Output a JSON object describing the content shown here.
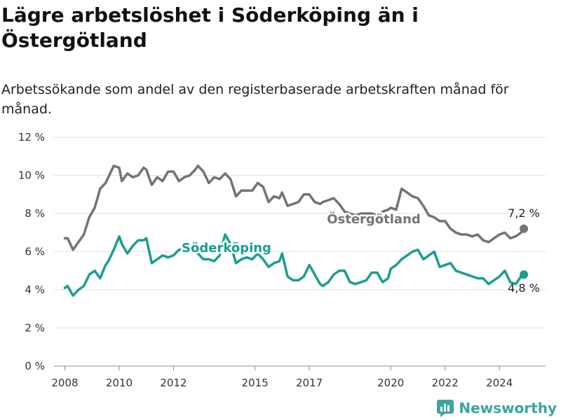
{
  "header": {
    "title": "Lägre arbetslöshet i Söderköping än i Östergötland",
    "subtitle": "Arbetssökande som andel av den registerbaserade arbetskraften månad för månad."
  },
  "brand": {
    "name": "Newsworthy",
    "icon": "newsworthy-logo-icon",
    "color": "#3aa6a0"
  },
  "chart_data": {
    "type": "line",
    "title": "Lägre arbetslöshet i Söderköping än i Östergötland",
    "subtitle": "Arbetssökande som andel av den registerbaserade arbetskraften månad för månad.",
    "ylim": [
      0,
      12
    ],
    "yticks": [
      0,
      2,
      4,
      6,
      8,
      10,
      12
    ],
    "ytick_labels": [
      "0 %",
      "2 %",
      "4 %",
      "6 %",
      "8 %",
      "10 %",
      "12 %"
    ],
    "xticks": [
      2008,
      2010,
      2012,
      2015,
      2017,
      2020,
      2022,
      2024
    ],
    "xtick_labels": [
      "2008",
      "2010",
      "2012",
      "2015",
      "2017",
      "2020",
      "2022",
      "2024"
    ],
    "x_range": [
      2007.6,
      2025.7
    ],
    "grid": "horizontal",
    "series": [
      {
        "name": "Östergötland",
        "color": "#737373",
        "end_label": "7,2 %",
        "x": [
          2008.0,
          2008.1,
          2008.3,
          2008.5,
          2008.7,
          2008.9,
          2009.1,
          2009.3,
          2009.5,
          2009.6,
          2009.8,
          2010.0,
          2010.1,
          2010.3,
          2010.5,
          2010.7,
          2010.9,
          2011.0,
          2011.2,
          2011.4,
          2011.6,
          2011.8,
          2012.0,
          2012.2,
          2012.4,
          2012.6,
          2012.8,
          2012.9,
          2013.1,
          2013.3,
          2013.5,
          2013.7,
          2013.9,
          2014.1,
          2014.3,
          2014.5,
          2014.7,
          2014.9,
          2015.1,
          2015.3,
          2015.5,
          2015.7,
          2015.9,
          2016.0,
          2016.2,
          2016.4,
          2016.6,
          2016.8,
          2017.0,
          2017.2,
          2017.4,
          2017.5,
          2017.7,
          2017.9,
          2018.1,
          2018.3,
          2018.5,
          2018.7,
          2018.9,
          2019.1,
          2019.3,
          2019.5,
          2019.7,
          2019.9,
          2020.0,
          2020.2,
          2020.4,
          2020.6,
          2020.8,
          2021.0,
          2021.2,
          2021.4,
          2021.6,
          2021.8,
          2022.0,
          2022.2,
          2022.4,
          2022.6,
          2022.8,
          2023.0,
          2023.2,
          2023.4,
          2023.6,
          2023.8,
          2024.0,
          2024.2,
          2024.4,
          2024.6,
          2024.8,
          2024.9
        ],
        "values": [
          6.7,
          6.7,
          6.1,
          6.5,
          6.9,
          7.8,
          8.3,
          9.3,
          9.6,
          9.9,
          10.5,
          10.4,
          9.7,
          10.1,
          9.9,
          10.0,
          10.4,
          10.3,
          9.5,
          9.9,
          9.7,
          10.2,
          10.2,
          9.7,
          9.9,
          10.0,
          10.3,
          10.5,
          10.2,
          9.6,
          9.9,
          9.8,
          10.1,
          9.8,
          8.9,
          9.2,
          9.2,
          9.2,
          9.6,
          9.4,
          8.6,
          8.9,
          8.8,
          9.1,
          8.4,
          8.5,
          8.6,
          9.0,
          9.0,
          8.6,
          8.5,
          8.6,
          8.7,
          8.8,
          8.5,
          8.1,
          8.0,
          7.9,
          8.0,
          8.0,
          8.0,
          7.9,
          8.1,
          8.2,
          8.3,
          8.2,
          9.3,
          9.1,
          8.9,
          8.8,
          8.4,
          7.9,
          7.8,
          7.6,
          7.6,
          7.2,
          7.0,
          6.9,
          6.9,
          6.8,
          6.9,
          6.6,
          6.5,
          6.7,
          6.9,
          7.0,
          6.7,
          6.8,
          7.0,
          7.2
        ]
      },
      {
        "name": "Söderköping",
        "color": "#1a9e8f",
        "end_label": "4,8 %",
        "x": [
          2008.0,
          2008.1,
          2008.3,
          2008.5,
          2008.7,
          2008.9,
          2009.1,
          2009.3,
          2009.5,
          2009.6,
          2009.8,
          2010.0,
          2010.1,
          2010.3,
          2010.5,
          2010.7,
          2010.9,
          2011.0,
          2011.2,
          2011.4,
          2011.6,
          2011.8,
          2012.0,
          2012.2,
          2012.4,
          2012.6,
          2012.8,
          2012.9,
          2013.1,
          2013.3,
          2013.5,
          2013.7,
          2013.9,
          2014.1,
          2014.3,
          2014.5,
          2014.7,
          2014.9,
          2015.1,
          2015.3,
          2015.5,
          2015.7,
          2015.9,
          2016.0,
          2016.2,
          2016.4,
          2016.6,
          2016.8,
          2017.0,
          2017.2,
          2017.4,
          2017.5,
          2017.7,
          2017.9,
          2018.1,
          2018.3,
          2018.5,
          2018.7,
          2018.9,
          2019.1,
          2019.3,
          2019.5,
          2019.7,
          2019.9,
          2020.0,
          2020.2,
          2020.4,
          2020.6,
          2020.8,
          2021.0,
          2021.2,
          2021.4,
          2021.6,
          2021.8,
          2022.0,
          2022.2,
          2022.4,
          2022.6,
          2022.8,
          2023.0,
          2023.2,
          2023.4,
          2023.6,
          2023.8,
          2024.0,
          2024.2,
          2024.4,
          2024.6,
          2024.8,
          2024.9
        ],
        "values": [
          4.1,
          4.2,
          3.7,
          4.0,
          4.2,
          4.8,
          5.0,
          4.6,
          5.3,
          5.5,
          6.1,
          6.8,
          6.4,
          5.9,
          6.3,
          6.6,
          6.6,
          6.7,
          5.4,
          5.6,
          5.8,
          5.7,
          5.8,
          6.1,
          6.1,
          6.1,
          6.0,
          5.9,
          5.6,
          5.6,
          5.5,
          5.8,
          6.9,
          6.4,
          5.4,
          5.6,
          5.7,
          5.6,
          5.9,
          5.6,
          5.2,
          5.4,
          5.5,
          5.9,
          4.7,
          4.5,
          4.5,
          4.7,
          5.3,
          4.8,
          4.3,
          4.2,
          4.4,
          4.8,
          5.0,
          5.0,
          4.4,
          4.3,
          4.4,
          4.5,
          4.9,
          4.9,
          4.4,
          4.6,
          5.1,
          5.3,
          5.6,
          5.8,
          6.0,
          6.1,
          5.6,
          5.8,
          6.0,
          5.2,
          5.3,
          5.4,
          5.0,
          4.9,
          4.8,
          4.7,
          4.6,
          4.6,
          4.3,
          4.5,
          4.7,
          5.0,
          4.4,
          4.3,
          4.7,
          4.8
        ]
      }
    ]
  }
}
